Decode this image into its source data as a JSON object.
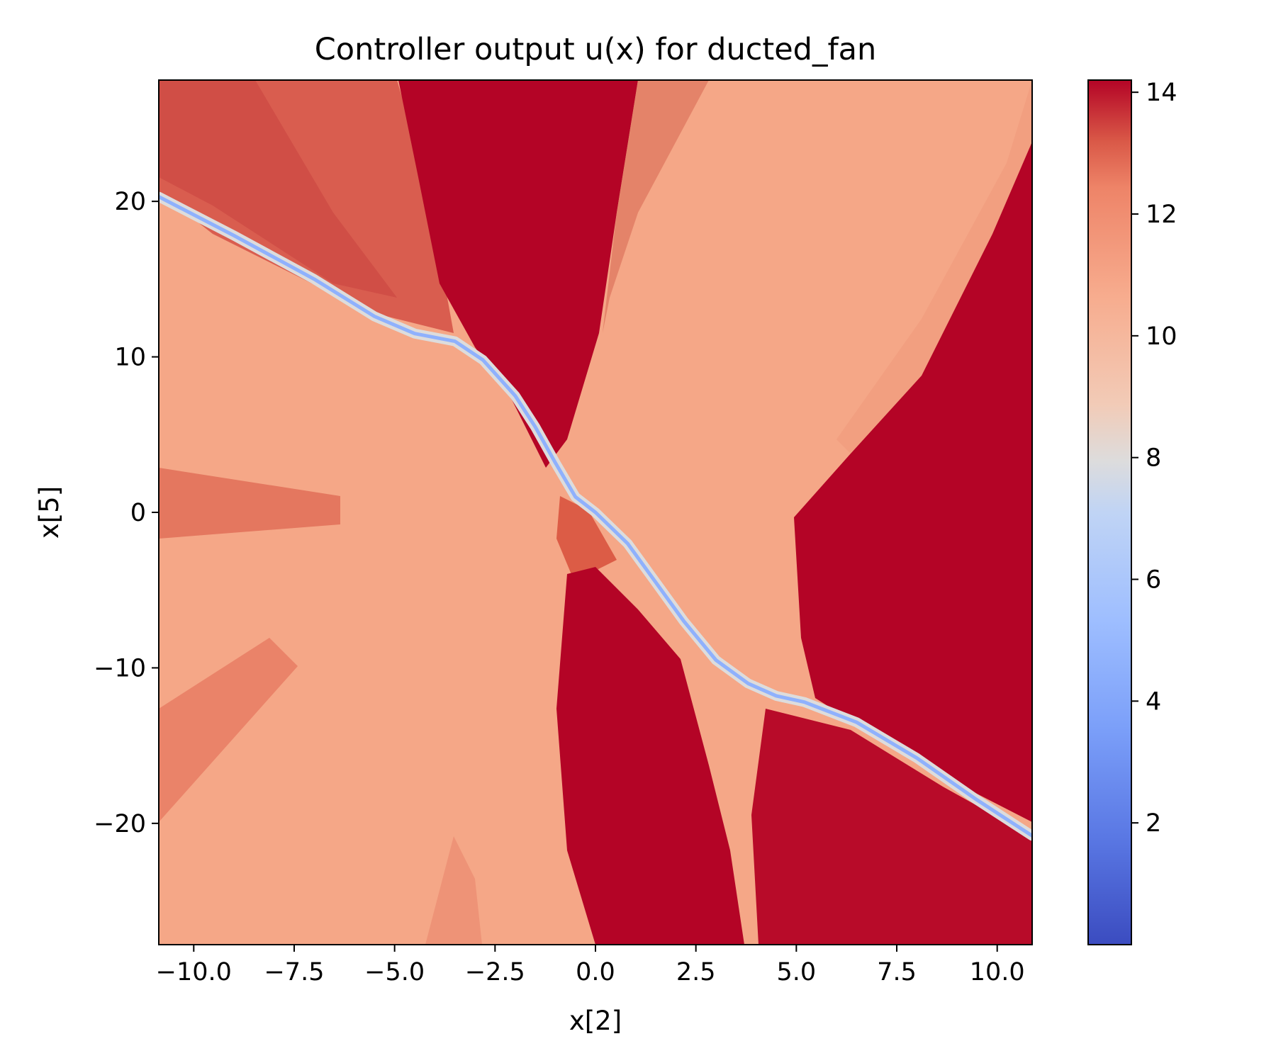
{
  "chart_data": {
    "type": "heatmap",
    "title": "Controller output u(x) for ducted_fan",
    "xlabel": "x[2]",
    "ylabel": "x[5]",
    "xlim": [
      -10.87,
      10.87
    ],
    "ylim": [
      -27.8,
      27.8
    ],
    "x_ticks": [
      -10.0,
      -7.5,
      -5.0,
      -2.5,
      0.0,
      2.5,
      5.0,
      7.5,
      10.0
    ],
    "x_tick_labels": [
      "−10.0",
      "−7.5",
      "−5.0",
      "−2.5",
      "0.0",
      "2.5",
      "5.0",
      "7.5",
      "10.0"
    ],
    "y_ticks": [
      20,
      10,
      0,
      -10,
      -20
    ],
    "y_tick_labels": [
      "20",
      "10",
      "0",
      "−10",
      "−20"
    ],
    "colormap": "coolwarm",
    "colorbar": {
      "vmin": 0.0,
      "vmax": 14.2,
      "ticks": [
        2,
        4,
        6,
        8,
        10,
        12,
        14
      ],
      "tick_labels": [
        "2",
        "4",
        "6",
        "8",
        "10",
        "12",
        "14"
      ]
    },
    "grid": false,
    "regions": {
      "background_value": 10.2,
      "saturated_value": 14.2,
      "mid_value": 12.0,
      "boundary_curve_value_min": 0.3,
      "boundary_curve_value_max": 6.0,
      "boundary_curve": [
        [
          -10.87,
          20.3
        ],
        [
          -9.0,
          17.8
        ],
        [
          -7.0,
          15.0
        ],
        [
          -5.5,
          12.6
        ],
        [
          -4.5,
          11.5
        ],
        [
          -3.5,
          11.0
        ],
        [
          -2.8,
          9.8
        ],
        [
          -2.0,
          7.5
        ],
        [
          -1.5,
          5.5
        ],
        [
          -1.0,
          3.2
        ],
        [
          -0.5,
          1.0
        ],
        [
          0.0,
          0.0
        ],
        [
          0.8,
          -2.0
        ],
        [
          1.5,
          -4.5
        ],
        [
          2.2,
          -7.0
        ],
        [
          3.0,
          -9.5
        ],
        [
          3.8,
          -11.0
        ],
        [
          4.5,
          -11.8
        ],
        [
          5.2,
          -12.2
        ],
        [
          6.5,
          -13.5
        ],
        [
          8.0,
          -15.8
        ],
        [
          9.5,
          -18.5
        ],
        [
          10.87,
          -20.8
        ]
      ]
    }
  }
}
